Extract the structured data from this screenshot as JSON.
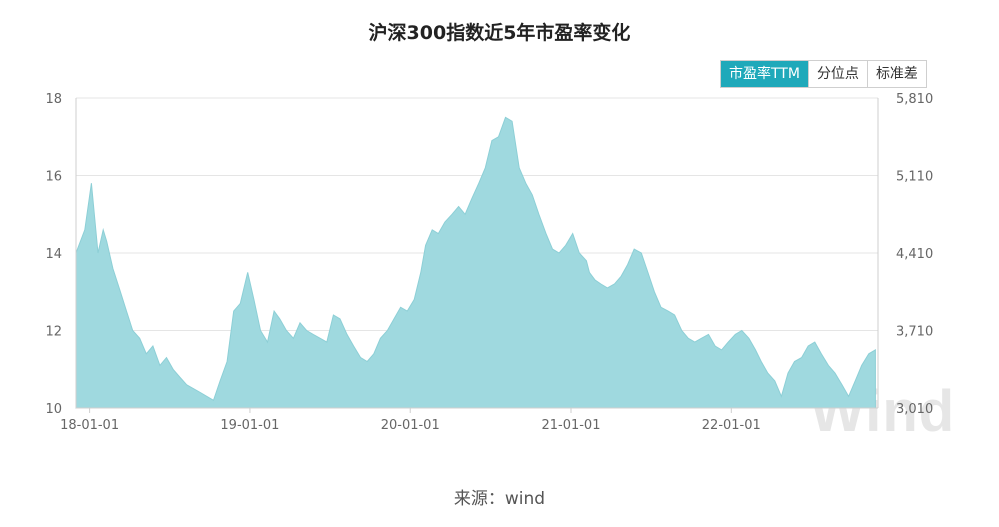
{
  "title": "沪深300指数近5年市盈率变化",
  "tabs": [
    {
      "label": "市盈率TTM",
      "active": true
    },
    {
      "label": "分位点",
      "active": false
    },
    {
      "label": "标准差",
      "active": false
    }
  ],
  "source": "来源：wind",
  "watermark": "Wind",
  "colors": {
    "fill": "#9fd9df",
    "line": "#8dcfd6",
    "active_tab": "#1fa9ba",
    "grid": "#e5e5e5"
  },
  "chart_data": {
    "type": "area",
    "y_ticks": [
      "10",
      "12",
      "14",
      "16",
      "18"
    ],
    "y2_ticks": [
      "3,010",
      "3,710",
      "4,410",
      "5,110",
      "5,810"
    ],
    "x_ticks": [
      "18-01-01",
      "19-01-01",
      "20-01-01",
      "21-01-01",
      "22-01-01"
    ],
    "ylim": [
      10,
      18
    ],
    "y2lim": [
      3010,
      5810
    ],
    "grid": true,
    "series": [
      {
        "x": [
          "2017-12-01",
          "2017-12-21",
          "2018-01-05",
          "2018-01-20",
          "2018-02-01",
          "2018-02-09",
          "2018-02-23",
          "2018-03-12",
          "2018-03-26",
          "2018-04-09",
          "2018-04-25",
          "2018-05-10",
          "2018-05-25",
          "2018-06-10",
          "2018-06-25",
          "2018-07-10",
          "2018-07-25",
          "2018-08-10",
          "2018-08-25",
          "2018-09-10",
          "2018-09-25",
          "2018-10-10",
          "2018-10-25",
          "2018-11-10",
          "2018-11-25",
          "2018-12-10",
          "2018-12-27",
          "2019-01-10",
          "2019-01-25",
          "2019-02-10",
          "2019-02-25",
          "2019-03-10",
          "2019-03-25",
          "2019-04-10",
          "2019-04-25",
          "2019-05-10",
          "2019-05-25",
          "2019-06-10",
          "2019-06-25",
          "2019-07-10",
          "2019-07-25",
          "2019-08-10",
          "2019-08-25",
          "2019-09-10",
          "2019-09-25",
          "2019-10-10",
          "2019-10-25",
          "2019-11-10",
          "2019-11-25",
          "2019-12-10",
          "2019-12-25",
          "2020-01-10",
          "2020-01-25",
          "2020-02-05",
          "2020-02-20",
          "2020-03-05",
          "2020-03-20",
          "2020-04-05",
          "2020-04-20",
          "2020-05-05",
          "2020-05-20",
          "2020-06-05",
          "2020-06-20",
          "2020-07-05",
          "2020-07-20",
          "2020-08-05",
          "2020-08-20",
          "2020-09-05",
          "2020-09-20",
          "2020-10-05",
          "2020-10-20",
          "2020-11-05",
          "2020-11-20",
          "2020-12-05",
          "2020-12-20",
          "2021-01-05",
          "2021-01-20",
          "2021-02-05",
          "2021-02-12",
          "2021-02-25",
          "2021-03-10",
          "2021-03-25",
          "2021-04-10",
          "2021-04-25",
          "2021-05-10",
          "2021-05-25",
          "2021-06-10",
          "2021-06-25",
          "2021-07-10",
          "2021-07-25",
          "2021-08-10",
          "2021-08-25",
          "2021-09-10",
          "2021-09-25",
          "2021-10-10",
          "2021-10-25",
          "2021-11-10",
          "2021-11-25",
          "2021-12-10",
          "2021-12-25",
          "2022-01-10",
          "2022-01-25",
          "2022-02-10",
          "2022-02-25",
          "2022-03-10",
          "2022-03-25",
          "2022-04-10",
          "2022-04-25",
          "2022-05-10",
          "2022-05-25",
          "2022-06-10",
          "2022-06-25",
          "2022-07-10",
          "2022-07-25",
          "2022-08-10",
          "2022-08-25",
          "2022-09-10",
          "2022-09-25",
          "2022-10-10",
          "2022-10-25",
          "2022-11-10",
          "2022-11-25"
        ],
        "values": [
          14.0,
          14.6,
          15.8,
          14.0,
          14.6,
          14.3,
          13.6,
          13.0,
          12.5,
          12.0,
          11.8,
          11.4,
          11.6,
          11.1,
          11.3,
          11.0,
          10.8,
          10.6,
          10.5,
          10.4,
          10.3,
          10.2,
          10.7,
          11.2,
          12.5,
          12.7,
          13.5,
          12.8,
          12.0,
          11.7,
          12.5,
          12.3,
          12.0,
          11.8,
          12.2,
          12.0,
          11.9,
          11.8,
          11.7,
          12.4,
          12.3,
          11.9,
          11.6,
          11.3,
          11.2,
          11.4,
          11.8,
          12.0,
          12.3,
          12.6,
          12.5,
          12.8,
          13.5,
          14.2,
          14.6,
          14.5,
          14.8,
          15.0,
          15.2,
          15.0,
          15.4,
          15.8,
          16.2,
          16.9,
          17.0,
          17.5,
          17.4,
          16.2,
          15.8,
          15.5,
          15.0,
          14.5,
          14.1,
          14.0,
          14.2,
          14.5,
          14.0,
          13.8,
          13.5,
          13.3,
          13.2,
          13.1,
          13.2,
          13.4,
          13.7,
          14.1,
          14.0,
          13.5,
          13.0,
          12.6,
          12.5,
          12.4,
          12.0,
          11.8,
          11.7,
          11.8,
          11.9,
          11.6,
          11.5,
          11.7,
          11.9,
          12.0,
          11.8,
          11.5,
          11.2,
          10.9,
          10.7,
          10.3,
          10.9,
          11.2,
          11.3,
          11.6,
          11.7,
          11.4,
          11.1,
          10.9,
          10.6,
          10.3,
          10.7,
          11.1,
          11.4,
          11.5
        ]
      }
    ]
  }
}
